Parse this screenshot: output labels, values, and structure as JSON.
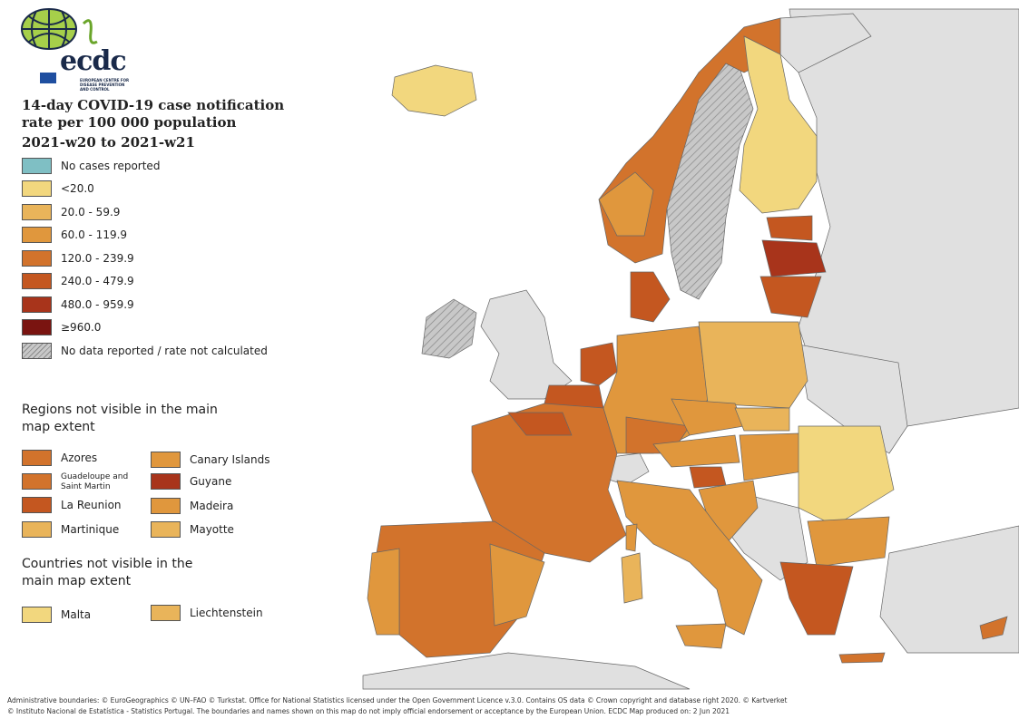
{
  "title": "14-day COVID-19 case notification rate per 100 000 population",
  "period": "2021-w20 to 2021-w21",
  "logo": {
    "name": "ecdc",
    "subtitle": "EUROPEAN CENTRE FOR DISEASE PREVENTION AND CONTROL"
  },
  "legend": [
    {
      "label": "No cases reported",
      "color": "#7fbfc4"
    },
    {
      "label": "<20.0",
      "color": "#f2d77e"
    },
    {
      "label": "20.0 - 59.9",
      "color": "#e9b45a"
    },
    {
      "label": "60.0 - 119.9",
      "color": "#e0973d"
    },
    {
      "label": "120.0 - 239.9",
      "color": "#d2732c"
    },
    {
      "label": "240.0 - 479.9",
      "color": "#c45720"
    },
    {
      "label": "480.0 - 959.9",
      "color": "#a8341b"
    },
    {
      "label": "≥960.0",
      "color": "#7a1410"
    },
    {
      "label": "No data reported / rate not calculated",
      "color": "#c8c8c8"
    }
  ],
  "regions_heading": "Regions not visible in the main map extent",
  "regions": [
    {
      "label": "Azores",
      "color": "#d2732c"
    },
    {
      "label": "Canary Islands",
      "color": "#e0973d"
    },
    {
      "label": "Guadeloupe and Saint Martin",
      "color": "#d2732c"
    },
    {
      "label": "Guyane",
      "color": "#a8341b"
    },
    {
      "label": "La Reunion",
      "color": "#c45720"
    },
    {
      "label": "Madeira",
      "color": "#e0973d"
    },
    {
      "label": "Martinique",
      "color": "#e9b45a"
    },
    {
      "label": "Mayotte",
      "color": "#e9b45a"
    }
  ],
  "countries_heading": "Countries not visible in the main map extent",
  "countries": [
    {
      "label": "Malta",
      "color": "#f2d77e"
    },
    {
      "label": "Liechtenstein",
      "color": "#e9b45a"
    }
  ],
  "map_colors": {
    "non_eu": "#e0e0e0",
    "border": "#666666"
  },
  "footer": {
    "line1": "Administrative boundaries: © EuroGeographics © UN–FAO © Turkstat. Office for National Statistics licensed under the Open Government Licence v.3.0. Contains OS data © Crown copyright and database right 2020. © Kartverket",
    "line2": "© Instituto Nacional de Estatística - Statistics Portugal. The boundaries and names shown on this map do not imply official endorsement or acceptance by the European Union. ECDC Map produced on: 2 Jun 2021"
  }
}
